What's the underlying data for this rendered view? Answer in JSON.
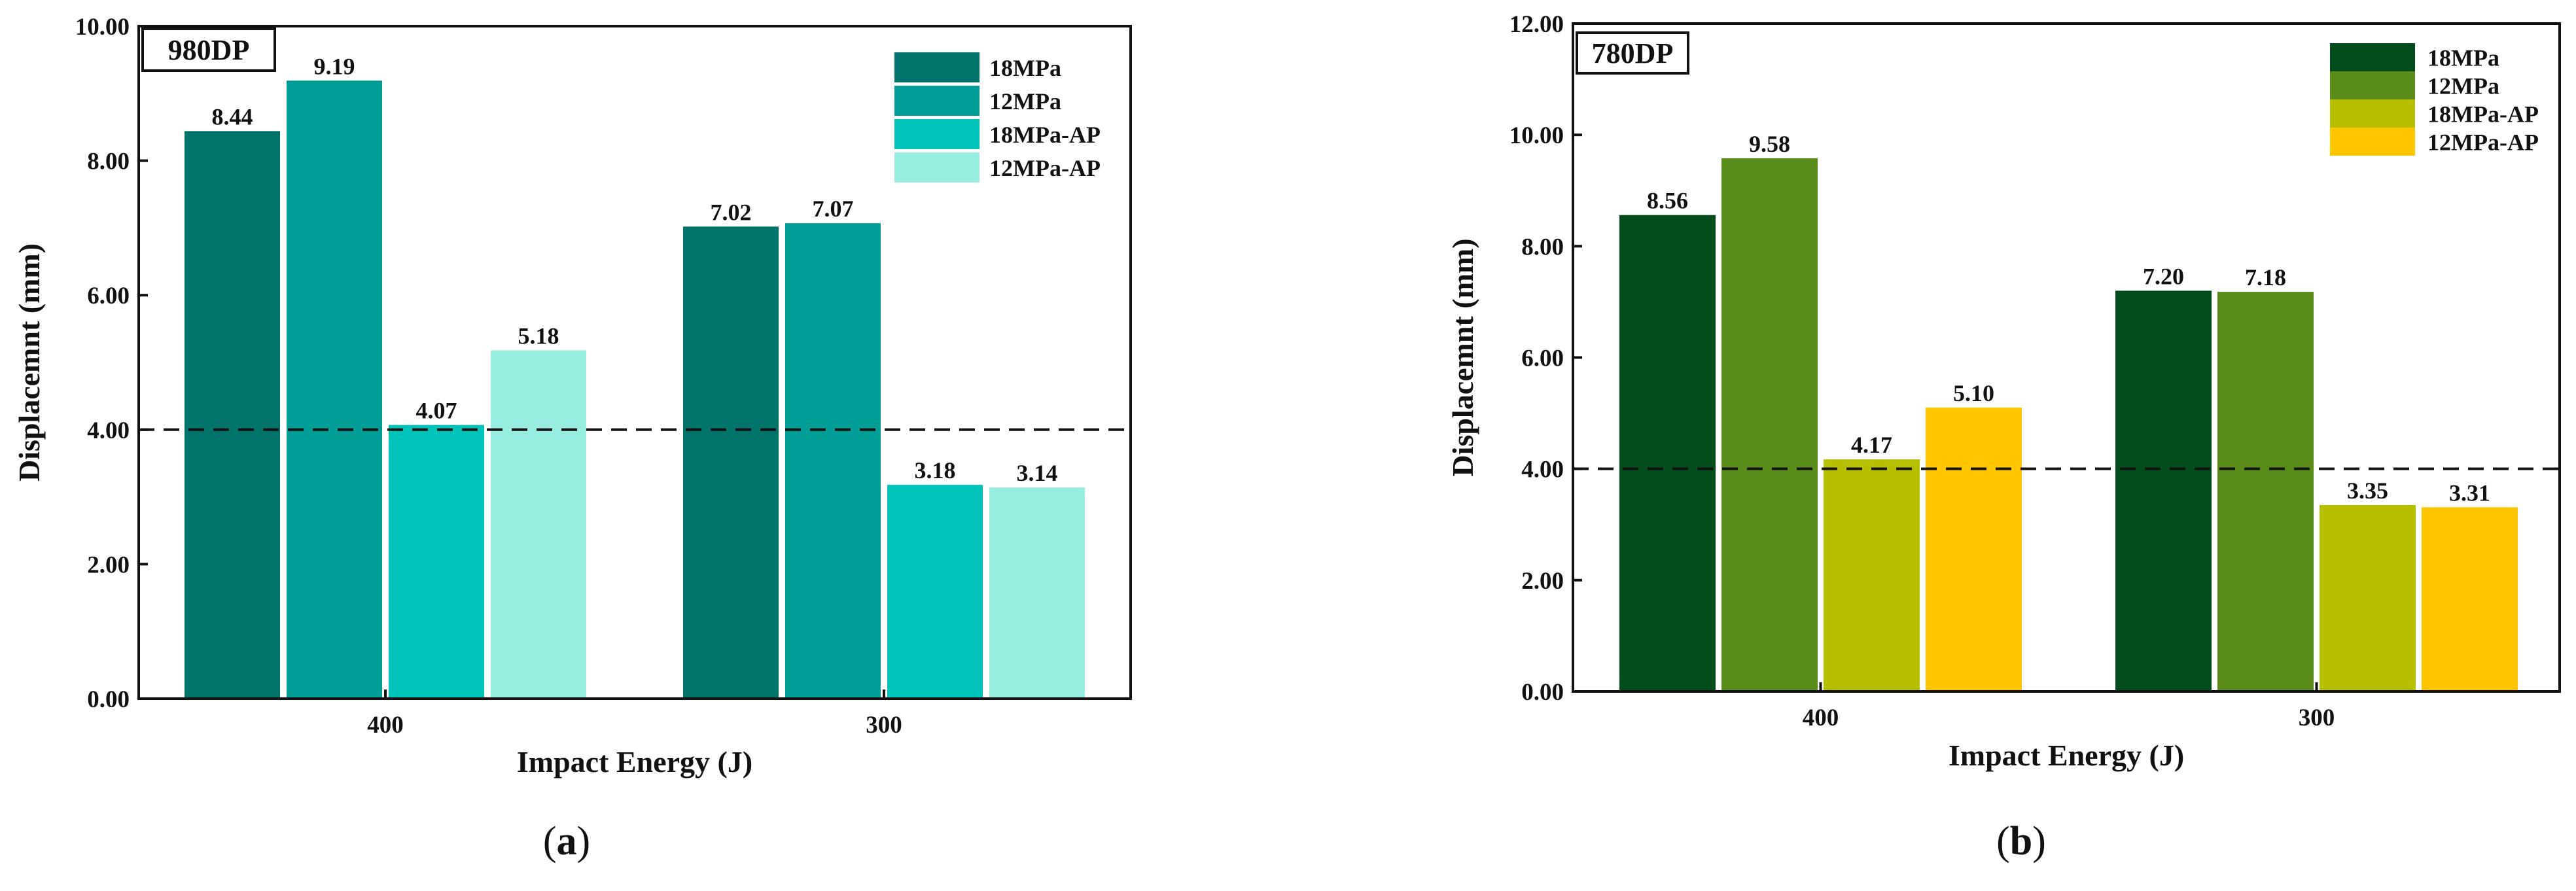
{
  "chart_data": [
    {
      "type": "bar",
      "panel_tag": "980DP",
      "caption": {
        "open": "(",
        "letter": "a",
        "close": ")"
      },
      "xlabel": "Impact Energy (J)",
      "ylabel": "Displacemnt (mm)",
      "ylim": [
        0,
        10
      ],
      "yticks": [
        "0.00",
        "2.00",
        "4.00",
        "6.00",
        "8.00",
        "10.00"
      ],
      "reference_line": 4.0,
      "categories": [
        "400",
        "300"
      ],
      "legend_position": "top-right",
      "series": [
        {
          "name": "18MPa",
          "color": "#00746A",
          "values": [
            8.44,
            7.02
          ],
          "labels": [
            "8.44",
            "7.02"
          ]
        },
        {
          "name": "12MPa",
          "color": "#009E96",
          "values": [
            9.19,
            7.07
          ],
          "labels": [
            "9.19",
            "7.07"
          ]
        },
        {
          "name": "18MPa-AP",
          "color": "#00C4BA",
          "values": [
            4.07,
            3.18
          ],
          "labels": [
            "4.07",
            "3.18"
          ]
        },
        {
          "name": "12MPa-AP",
          "color": "#97EDDF",
          "values": [
            5.18,
            3.14
          ],
          "labels": [
            "5.18",
            "3.14"
          ]
        }
      ]
    },
    {
      "type": "bar",
      "panel_tag": "780DP",
      "caption": {
        "open": "(",
        "letter": "b",
        "close": ")"
      },
      "xlabel": "Impact Energy (J)",
      "ylabel": "Displacemnt (mm)",
      "ylim": [
        0,
        12
      ],
      "yticks": [
        "0.00",
        "2.00",
        "4.00",
        "6.00",
        "8.00",
        "10.00",
        "12.00"
      ],
      "reference_line": 4.0,
      "categories": [
        "400",
        "300"
      ],
      "legend_position": "top-right",
      "series": [
        {
          "name": "18MPa",
          "color": "#034D1C",
          "values": [
            8.56,
            7.2
          ],
          "labels": [
            "8.56",
            "7.20"
          ]
        },
        {
          "name": "12MPa",
          "color": "#5A8C1A",
          "values": [
            9.58,
            7.18
          ],
          "labels": [
            "9.58",
            "7.18"
          ]
        },
        {
          "name": "18MPa-AP",
          "color": "#B6C000",
          "values": [
            4.17,
            3.35
          ],
          "labels": [
            "4.17",
            "3.35"
          ]
        },
        {
          "name": "12MPa-AP",
          "color": "#FFC600",
          "values": [
            5.1,
            3.31
          ],
          "labels": [
            "5.10",
            "3.31"
          ]
        }
      ]
    }
  ]
}
